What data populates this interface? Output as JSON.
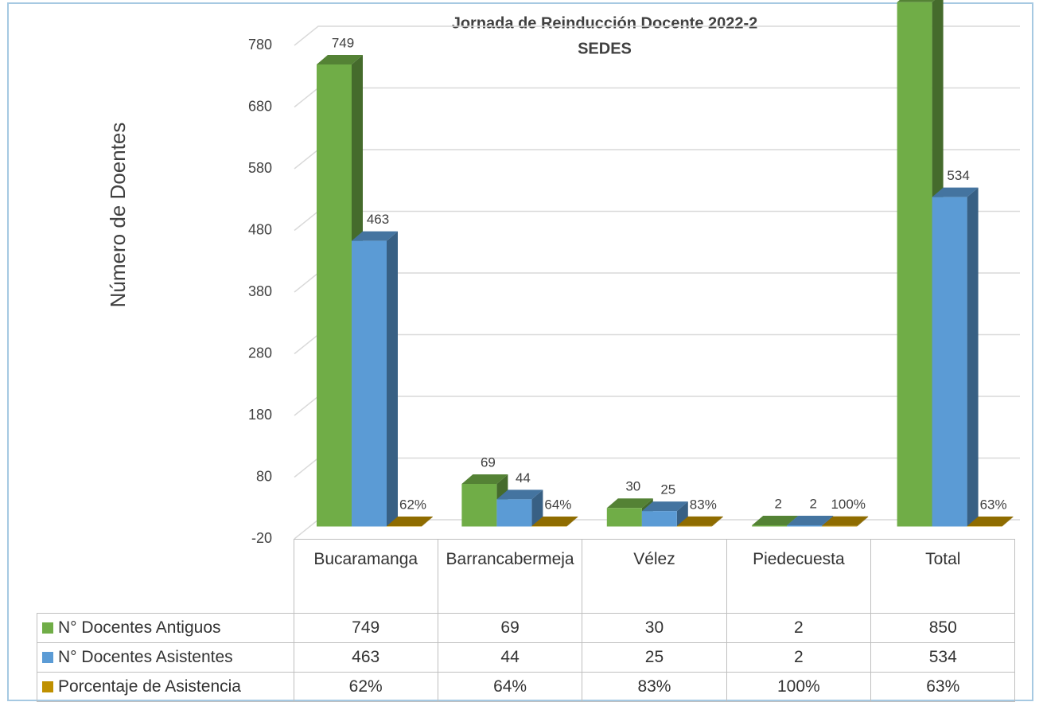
{
  "chart_data": {
    "type": "bar3d",
    "title": "Jornada de Reinducción Docente 2022-2",
    "subtitle": "SEDES",
    "y_label": "Número de Doentes",
    "categories": [
      "Bucaramanga",
      "Barrancabermeja",
      "Vélez",
      "Piedecuesta",
      "Total"
    ],
    "series": [
      {
        "name": "N° Docentes Antiguos",
        "color": "#70ad47",
        "values": [
          749,
          69,
          30,
          2,
          850
        ]
      },
      {
        "name": "N° Docentes Asistentes",
        "color": "#5b9bd5",
        "values": [
          463,
          44,
          25,
          2,
          534
        ]
      },
      {
        "name": "Porcentaje de Asistencia",
        "color": "#bf9000",
        "values": [
          0.62,
          0.64,
          0.83,
          1,
          0.63
        ],
        "value_labels": [
          "62%",
          "64%",
          "83%",
          "100%",
          "63%"
        ]
      }
    ],
    "ylim": [
      -20,
      780
    ],
    "yticks": [
      -20,
      80,
      180,
      280,
      380,
      480,
      580,
      680,
      780
    ],
    "grid": true
  }
}
